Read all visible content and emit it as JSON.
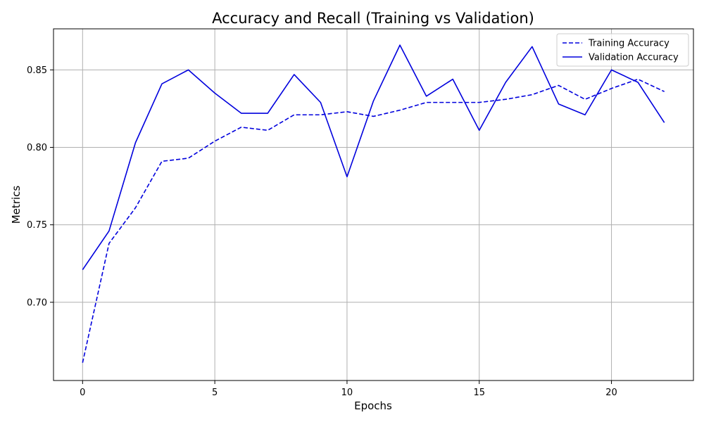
{
  "chart_data": {
    "type": "line",
    "title": "Accuracy and Recall (Training vs Validation)",
    "xlabel": "Epochs",
    "ylabel": "Metrics",
    "xlim": [
      -1.1,
      23.1
    ],
    "ylim": [
      0.6495,
      0.8765
    ],
    "xticks": [
      0,
      5,
      10,
      15,
      20
    ],
    "yticks": [
      0.7,
      0.75,
      0.8,
      0.85
    ],
    "ytick_labels": [
      "0.70",
      "0.75",
      "0.80",
      "0.85"
    ],
    "grid": true,
    "legend_position": "top-right",
    "x": [
      0,
      1,
      2,
      3,
      4,
      5,
      6,
      7,
      8,
      9,
      10,
      11,
      12,
      13,
      14,
      15,
      16,
      17,
      18,
      19,
      20,
      21,
      22
    ],
    "series": [
      {
        "name": "Training Accuracy",
        "color": "#0000dd",
        "style": "dashed",
        "values": [
          0.661,
          0.738,
          0.761,
          0.791,
          0.793,
          0.804,
          0.813,
          0.811,
          0.821,
          0.821,
          0.823,
          0.82,
          0.824,
          0.829,
          0.829,
          0.829,
          0.831,
          0.834,
          0.84,
          0.831,
          0.838,
          0.844,
          0.836
        ]
      },
      {
        "name": "Validation Accuracy",
        "color": "#0000dd",
        "style": "solid",
        "values": [
          0.721,
          0.746,
          0.803,
          0.841,
          0.85,
          0.835,
          0.822,
          0.822,
          0.847,
          0.829,
          0.781,
          0.83,
          0.866,
          0.833,
          0.844,
          0.811,
          0.842,
          0.865,
          0.828,
          0.821,
          0.85,
          0.842,
          0.816
        ]
      }
    ]
  }
}
